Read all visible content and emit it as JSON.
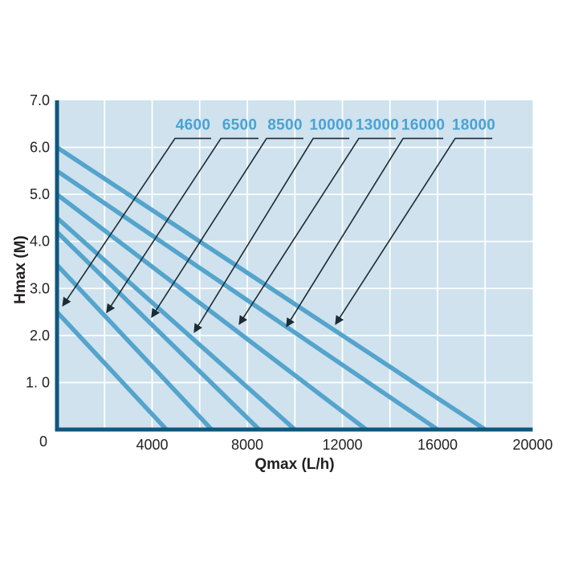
{
  "page": {
    "background": "#ffffff"
  },
  "colors": {
    "plot_bg": "#cfe2ee",
    "grid": "#ffffff",
    "curve": "#54a4cc",
    "axis": "#0f577d",
    "series_label": "#48a3d3",
    "leader_line": "#1d2b33",
    "tick_text": "#231f20"
  },
  "chart_data": {
    "type": "line",
    "title": "",
    "xlabel": "Qmax (L/h)",
    "ylabel": "Hmax (M)",
    "xlim": [
      0,
      20000
    ],
    "ylim": [
      0,
      7.0
    ],
    "grid": {
      "on": true,
      "x_step": 2000,
      "y_step": 1.0
    },
    "legend_position": "none",
    "origin_label": "0",
    "x_ticks": [
      {
        "value": 4000,
        "label": "4000"
      },
      {
        "value": 8000,
        "label": "8000"
      },
      {
        "value": 12000,
        "label": "12000"
      },
      {
        "value": 16000,
        "label": "16000"
      },
      {
        "value": 20000,
        "label": "20000"
      }
    ],
    "y_ticks": [
      {
        "value": 7,
        "label": "7.0"
      },
      {
        "value": 6,
        "label": "6.0"
      },
      {
        "value": 5,
        "label": "5.0"
      },
      {
        "value": 4,
        "label": "4.0"
      },
      {
        "value": 3,
        "label": "3.0"
      },
      {
        "value": 2,
        "label": "2.0"
      },
      {
        "value": 1,
        "label": "1. 0"
      }
    ],
    "series": [
      {
        "name": "4600",
        "hmax_m": 2.5,
        "qmax_lh": 4600,
        "points": [
          [
            0,
            2.5
          ],
          [
            4600,
            0
          ]
        ]
      },
      {
        "name": "6500",
        "hmax_m": 3.5,
        "qmax_lh": 6500,
        "points": [
          [
            0,
            3.5
          ],
          [
            6500,
            0
          ]
        ]
      },
      {
        "name": "8500",
        "hmax_m": 4.2,
        "qmax_lh": 8500,
        "points": [
          [
            0,
            4.2
          ],
          [
            8500,
            0
          ]
        ]
      },
      {
        "name": "10000",
        "hmax_m": 4.5,
        "qmax_lh": 10000,
        "points": [
          [
            0,
            4.5
          ],
          [
            10000,
            0
          ]
        ]
      },
      {
        "name": "13000",
        "hmax_m": 5.0,
        "qmax_lh": 13000,
        "points": [
          [
            0,
            5.0
          ],
          [
            13000,
            0
          ]
        ]
      },
      {
        "name": "16000",
        "hmax_m": 5.5,
        "qmax_lh": 16000,
        "points": [
          [
            0,
            5.5
          ],
          [
            16000,
            0
          ]
        ]
      },
      {
        "name": "18000",
        "hmax_m": 6.0,
        "qmax_lh": 18000,
        "points": [
          [
            0,
            6.0
          ],
          [
            18000,
            0
          ]
        ]
      }
    ],
    "annotations": [
      {
        "label": "4600",
        "tail_q": 6480,
        "elbow_q": 4960,
        "at_h": 6.19,
        "tip_q": 240,
        "tip_h": 2.63
      },
      {
        "label": "6500",
        "tail_q": 8470,
        "elbow_q": 6890,
        "at_h": 6.19,
        "tip_q": 2090,
        "tip_h": 2.49
      },
      {
        "label": "8500",
        "tail_q": 10360,
        "elbow_q": 8810,
        "at_h": 6.19,
        "tip_q": 3980,
        "tip_h": 2.39
      },
      {
        "label": "10000",
        "tail_q": 12290,
        "elbow_q": 10770,
        "at_h": 6.19,
        "tip_q": 5770,
        "tip_h": 2.07
      },
      {
        "label": "13000",
        "tail_q": 14240,
        "elbow_q": 12690,
        "at_h": 6.19,
        "tip_q": 7660,
        "tip_h": 2.24
      },
      {
        "label": "16000",
        "tail_q": 16240,
        "elbow_q": 14550,
        "at_h": 6.19,
        "tip_q": 9650,
        "tip_h": 2.19
      },
      {
        "label": "18000",
        "tail_q": 18300,
        "elbow_q": 16740,
        "at_h": 6.19,
        "tip_q": 11710,
        "tip_h": 2.24
      }
    ]
  }
}
